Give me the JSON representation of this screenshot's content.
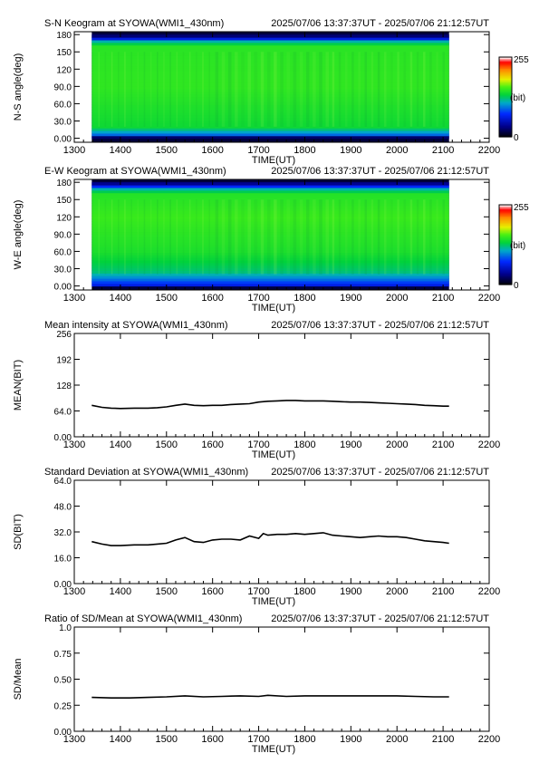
{
  "page": {
    "background": "#ffffff",
    "ink": "#000000"
  },
  "chart_data": [
    {
      "type": "heatmap",
      "title": "S-N Keogram at SYOWA(WMI1_430nm)",
      "time_range": "2025/07/06 13:37:37UT - 2025/07/06 21:12:57UT",
      "xlabel": "TIME(UT)",
      "ylabel": "N-S angle(deg)",
      "xlim": [
        1300,
        2200
      ],
      "ylim": [
        -7,
        185
      ],
      "xticks": [
        "1300",
        "1400",
        "1500",
        "1600",
        "1700",
        "1800",
        "1900",
        "2000",
        "2100",
        "2200"
      ],
      "yticks": [
        "0.00",
        "30.0",
        "60.0",
        "90.0",
        "120",
        "150",
        "180"
      ],
      "data_x_range": [
        1338,
        2113
      ],
      "data_y_range": [
        0,
        180
      ],
      "colorbar": {
        "min_label": "0",
        "max_label": "255",
        "unit_label": "(bit)"
      },
      "profile": [
        {
          "y": 0,
          "v": 15
        },
        {
          "y": 3,
          "v": 30
        },
        {
          "y": 6,
          "v": 90
        },
        {
          "y": 20,
          "v": 140
        },
        {
          "y": 90,
          "v": 152
        },
        {
          "y": 160,
          "v": 150
        },
        {
          "y": 170,
          "v": 110
        },
        {
          "y": 175,
          "v": 40
        },
        {
          "y": 180,
          "v": 20
        }
      ]
    },
    {
      "type": "heatmap",
      "title": "E-W Keogram at SYOWA(WMI1_430nm)",
      "time_range": "2025/07/06 13:37:37UT - 2025/07/06 21:12:57UT",
      "xlabel": "TIME(UT)",
      "ylabel": "W-E angle(deg)",
      "xlim": [
        1300,
        2200
      ],
      "ylim": [
        -7,
        185
      ],
      "xticks": [
        "1300",
        "1400",
        "1500",
        "1600",
        "1700",
        "1800",
        "1900",
        "2000",
        "2100",
        "2200"
      ],
      "yticks": [
        "0.00",
        "30.0",
        "60.0",
        "90.0",
        "120",
        "150",
        "180"
      ],
      "data_x_range": [
        1338,
        2113
      ],
      "data_y_range": [
        0,
        180
      ],
      "colorbar": {
        "min_label": "0",
        "max_label": "255",
        "unit_label": "(bit)"
      },
      "profile": [
        {
          "y": 0,
          "v": 60
        },
        {
          "y": 10,
          "v": 90
        },
        {
          "y": 25,
          "v": 125
        },
        {
          "y": 60,
          "v": 145
        },
        {
          "y": 120,
          "v": 155
        },
        {
          "y": 160,
          "v": 148
        },
        {
          "y": 170,
          "v": 110
        },
        {
          "y": 176,
          "v": 45
        },
        {
          "y": 180,
          "v": 25
        }
      ]
    },
    {
      "type": "line",
      "title": "Mean intensity at SYOWA(WMI1_430nm)",
      "time_range": "2025/07/06 13:37:37UT - 2025/07/06 21:12:57UT",
      "xlabel": "TIME(UT)",
      "ylabel": "MEAN(BIT)",
      "xlim": [
        1300,
        2200
      ],
      "ylim": [
        0,
        256
      ],
      "xticks": [
        "1300",
        "1400",
        "1500",
        "1600",
        "1700",
        "1800",
        "1900",
        "2000",
        "2100",
        "2200"
      ],
      "yticks": [
        "0.00",
        "64.0",
        "128",
        "192",
        "256"
      ],
      "series": [
        {
          "x": [
            1338,
            1360,
            1380,
            1400,
            1430,
            1460,
            1480,
            1500,
            1520,
            1540,
            1560,
            1580,
            1600,
            1620,
            1640,
            1660,
            1680,
            1700,
            1720,
            1740,
            1760,
            1780,
            1800,
            1820,
            1840,
            1860,
            1880,
            1900,
            1920,
            1940,
            1960,
            1980,
            2000,
            2020,
            2040,
            2060,
            2080,
            2100,
            2113
          ],
          "y": [
            78,
            73,
            71,
            70,
            71,
            71,
            72,
            74,
            78,
            81,
            78,
            77,
            78,
            78,
            80,
            81,
            82,
            86,
            88,
            89,
            90,
            90,
            89,
            89,
            89,
            88,
            87,
            86,
            86,
            85,
            84,
            83,
            82,
            81,
            80,
            78,
            77,
            76,
            76
          ]
        }
      ]
    },
    {
      "type": "line",
      "title": "Standard Deviation at SYOWA(WMI1_430nm)",
      "time_range": "2025/07/06 13:37:37UT - 2025/07/06 21:12:57UT",
      "xlabel": "TIME(UT)",
      "ylabel": "SD(BIT)",
      "xlim": [
        1300,
        2200
      ],
      "ylim": [
        0,
        64
      ],
      "xticks": [
        "1300",
        "1400",
        "1500",
        "1600",
        "1700",
        "1800",
        "1900",
        "2000",
        "2100",
        "2200"
      ],
      "yticks": [
        "0.00",
        "16.0",
        "32.0",
        "48.0",
        "64.0"
      ],
      "series": [
        {
          "x": [
            1338,
            1360,
            1380,
            1400,
            1430,
            1460,
            1480,
            1500,
            1520,
            1540,
            1560,
            1580,
            1600,
            1620,
            1640,
            1660,
            1680,
            1700,
            1710,
            1720,
            1740,
            1760,
            1780,
            1800,
            1820,
            1840,
            1860,
            1880,
            1900,
            1920,
            1940,
            1960,
            1980,
            2000,
            2020,
            2040,
            2060,
            2080,
            2100,
            2113
          ],
          "y": [
            26,
            24.5,
            23.5,
            23.5,
            24,
            24,
            24.5,
            25,
            27,
            28.5,
            26,
            25.5,
            27,
            27.5,
            27.5,
            27,
            29.5,
            28,
            31,
            30,
            30.5,
            30.5,
            31,
            30.5,
            31,
            31.5,
            30,
            29.5,
            29,
            28.5,
            29,
            29.5,
            29,
            29,
            28.5,
            27.5,
            26.5,
            26,
            25.5,
            25
          ]
        }
      ]
    },
    {
      "type": "line",
      "title": "Ratio of SD/Mean at SYOWA(WMI1_430nm)",
      "time_range": "2025/07/06 13:37:37UT - 2025/07/06 21:12:57UT",
      "xlabel": "TIME(UT)",
      "ylabel": "SD/Mean",
      "xlim": [
        1300,
        2200
      ],
      "ylim": [
        0,
        1
      ],
      "xticks": [
        "1300",
        "1400",
        "1500",
        "1600",
        "1700",
        "1800",
        "1900",
        "2000",
        "2100",
        "2200"
      ],
      "yticks": [
        "0.00",
        "0.25",
        "0.50",
        "0.75",
        "1.0"
      ],
      "series": [
        {
          "x": [
            1338,
            1380,
            1420,
            1460,
            1500,
            1540,
            1580,
            1620,
            1660,
            1700,
            1720,
            1760,
            1800,
            1840,
            1880,
            1920,
            1960,
            2000,
            2040,
            2080,
            2113
          ],
          "y": [
            0.325,
            0.32,
            0.32,
            0.325,
            0.33,
            0.34,
            0.33,
            0.335,
            0.34,
            0.335,
            0.345,
            0.335,
            0.34,
            0.34,
            0.34,
            0.34,
            0.34,
            0.34,
            0.335,
            0.33,
            0.33
          ]
        }
      ]
    }
  ]
}
